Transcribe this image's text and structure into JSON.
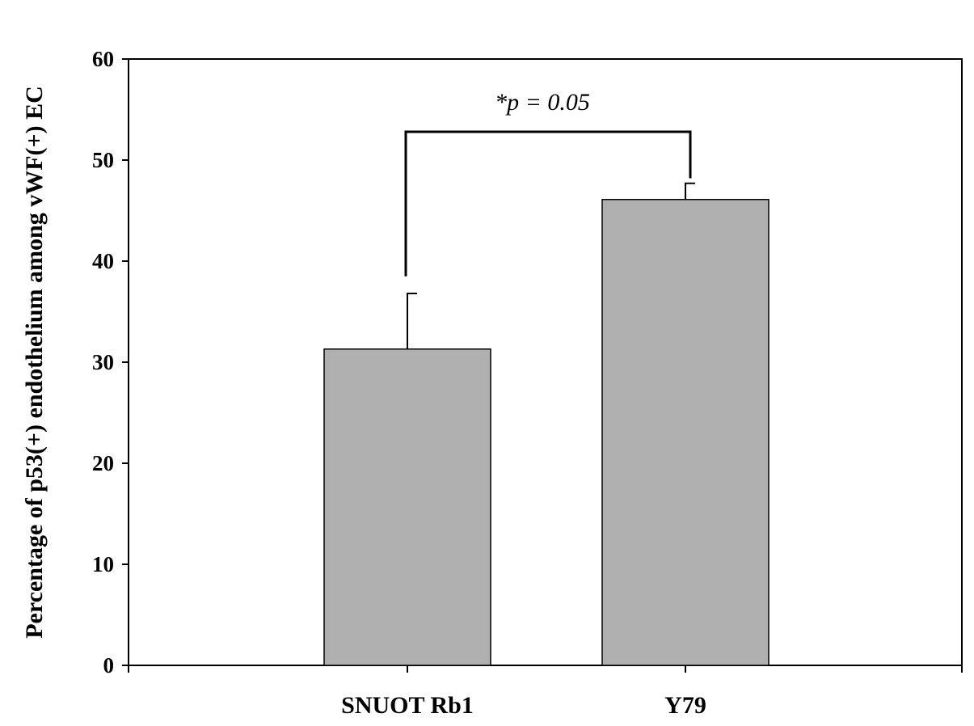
{
  "chart_data": {
    "type": "bar",
    "categories": [
      "SNUOT Rb1",
      "Y79"
    ],
    "values": [
      31.3,
      46.1
    ],
    "error": [
      5.5,
      1.6
    ],
    "ylabel": "Percentage of p53(+) endothelium among vWF(+) EC",
    "xlabel": "",
    "title": "",
    "ylim": [
      0,
      60
    ],
    "yticks": [
      "0",
      "10",
      "20",
      "30",
      "40",
      "50",
      "60"
    ],
    "bar_color": "#b0b0b0",
    "grid": false,
    "annotation": "*p = 0.05",
    "bracket_heights": [
      38.5,
      52.8
    ]
  }
}
